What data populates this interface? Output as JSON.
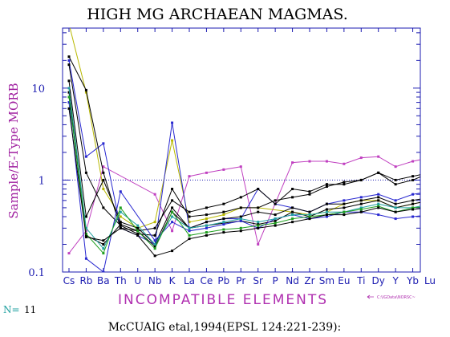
{
  "chart_data": {
    "type": "line",
    "title": "HIGH MG ARCHAEAN MAGMAS.",
    "ylabel": "Sample/E-Type MORB",
    "xlabel": "INCOMPATIBLE ELEMENTS",
    "y_scale": "log",
    "ylim": [
      0.1,
      45
    ],
    "y_ticks": [
      {
        "value": 10,
        "label": "10"
      },
      {
        "value": 1,
        "label": "1"
      },
      {
        "value": 0.1,
        "label": "0.1"
      }
    ],
    "reference_line": 1,
    "categories": [
      "Cs",
      "Rb",
      "Ba",
      "Th",
      "U",
      "Nb",
      "K",
      "La",
      "Ce",
      "Pb",
      "Pr",
      "Sr",
      "P",
      "Nd",
      "Zr",
      "Sm",
      "Eu",
      "Ti",
      "Dy",
      "Y",
      "Yb",
      "Lu"
    ],
    "tick_labels": [
      "Cs",
      "Rb",
      "Ba",
      "Th",
      "U",
      "Nb",
      "K",
      "La",
      "Ce",
      "Pb",
      "Pr",
      "Sr",
      "P",
      "Nd",
      "Zr",
      "Sm",
      "Eu",
      "Ti",
      "Dy",
      "Y",
      "Yb",
      "Lu"
    ],
    "n_label": "N=",
    "n_value": "11",
    "file_note": "C:\\IGData\\NORSC~",
    "footer": "McCUAIG etal,1994(EPSL 124:221-239):",
    "colors": {
      "frame": "#1b1bb0",
      "title": "#000000",
      "ylabel": "#a020a0",
      "xlabel": "#b030b0",
      "n_label": "#20a0a0",
      "note": "#b030b0",
      "reference": "#1b1bb0"
    },
    "series": [
      {
        "color": "#c040c0",
        "values": [
          0.16,
          0.28,
          1.4,
          null,
          null,
          0.7,
          0.28,
          1.1,
          1.2,
          1.3,
          1.4,
          0.2,
          null,
          1.55,
          1.6,
          1.6,
          1.5,
          1.75,
          1.8,
          1.4,
          1.6,
          1.75
        ]
      },
      {
        "color": "#b8b800",
        "values": [
          50,
          9,
          0.8,
          0.4,
          0.3,
          0.35,
          2.7,
          0.35,
          0.38,
          0.42,
          0.5,
          0.5,
          null,
          0.45,
          0.42,
          0.45,
          0.55,
          0.6,
          0.6,
          0.5,
          0.55,
          0.6
        ]
      },
      {
        "color": "#2828d0",
        "values": [
          20,
          1.8,
          2.5,
          0.3,
          0.25,
          0.2,
          4.2,
          0.3,
          0.35,
          0.38,
          0.38,
          0.8,
          0.55,
          0.5,
          0.45,
          0.55,
          0.6,
          0.65,
          0.7,
          0.6,
          0.7,
          0.75
        ]
      },
      {
        "color": "#000000",
        "values": [
          22,
          9.5,
          1.2,
          0.3,
          0.28,
          0.3,
          0.6,
          0.45,
          0.5,
          0.55,
          0.65,
          0.8,
          0.55,
          0.8,
          0.75,
          0.9,
          0.9,
          1.0,
          1.2,
          1.0,
          1.1,
          1.2
        ]
      },
      {
        "color": "#000000",
        "values": [
          18,
          1.2,
          0.5,
          0.32,
          0.26,
          0.25,
          0.8,
          0.4,
          0.42,
          0.45,
          0.5,
          0.5,
          0.6,
          0.65,
          0.7,
          0.85,
          0.95,
          1.0,
          1.2,
          0.9,
          1.0,
          1.2
        ]
      },
      {
        "color": "#000000",
        "values": [
          12,
          0.4,
          1.0,
          0.35,
          0.3,
          0.2,
          0.5,
          0.3,
          0.35,
          0.38,
          0.4,
          0.45,
          0.42,
          0.5,
          0.45,
          0.55,
          0.55,
          0.6,
          0.65,
          0.55,
          0.6,
          0.65
        ]
      },
      {
        "color": "#000000",
        "values": [
          9,
          0.25,
          0.2,
          0.33,
          0.28,
          0.19,
          0.45,
          0.3,
          0.32,
          0.34,
          0.36,
          0.33,
          0.36,
          0.45,
          0.4,
          0.48,
          0.5,
          0.55,
          0.6,
          0.5,
          0.55,
          0.6
        ]
      },
      {
        "color": "#2828d0",
        "values": [
          7,
          0.14,
          0.1,
          0.75,
          null,
          0.22,
          0.35,
          0.28,
          0.3,
          0.33,
          0.36,
          0.3,
          0.38,
          0.42,
          0.38,
          0.4,
          0.45,
          0.45,
          0.42,
          0.38,
          0.4,
          0.42
        ]
      },
      {
        "color": "#20a0a0",
        "values": [
          10,
          0.3,
          0.18,
          0.45,
          0.32,
          0.2,
          0.4,
          0.3,
          0.32,
          0.35,
          0.38,
          0.35,
          0.38,
          0.42,
          0.42,
          0.45,
          0.45,
          0.5,
          0.55,
          0.5,
          0.5,
          0.55
        ]
      },
      {
        "color": "#20a020",
        "values": [
          8,
          0.26,
          0.16,
          0.5,
          0.28,
          0.18,
          0.45,
          0.25,
          0.27,
          0.29,
          0.3,
          0.32,
          0.34,
          0.38,
          0.4,
          0.42,
          0.45,
          0.48,
          0.52,
          0.45,
          0.5,
          0.52
        ]
      },
      {
        "color": "#000000",
        "values": [
          6,
          0.24,
          0.22,
          0.3,
          0.25,
          0.15,
          0.17,
          0.23,
          0.25,
          0.27,
          0.28,
          0.3,
          0.32,
          0.35,
          0.38,
          0.42,
          0.42,
          0.45,
          0.5,
          0.45,
          0.48,
          0.5
        ]
      }
    ]
  }
}
